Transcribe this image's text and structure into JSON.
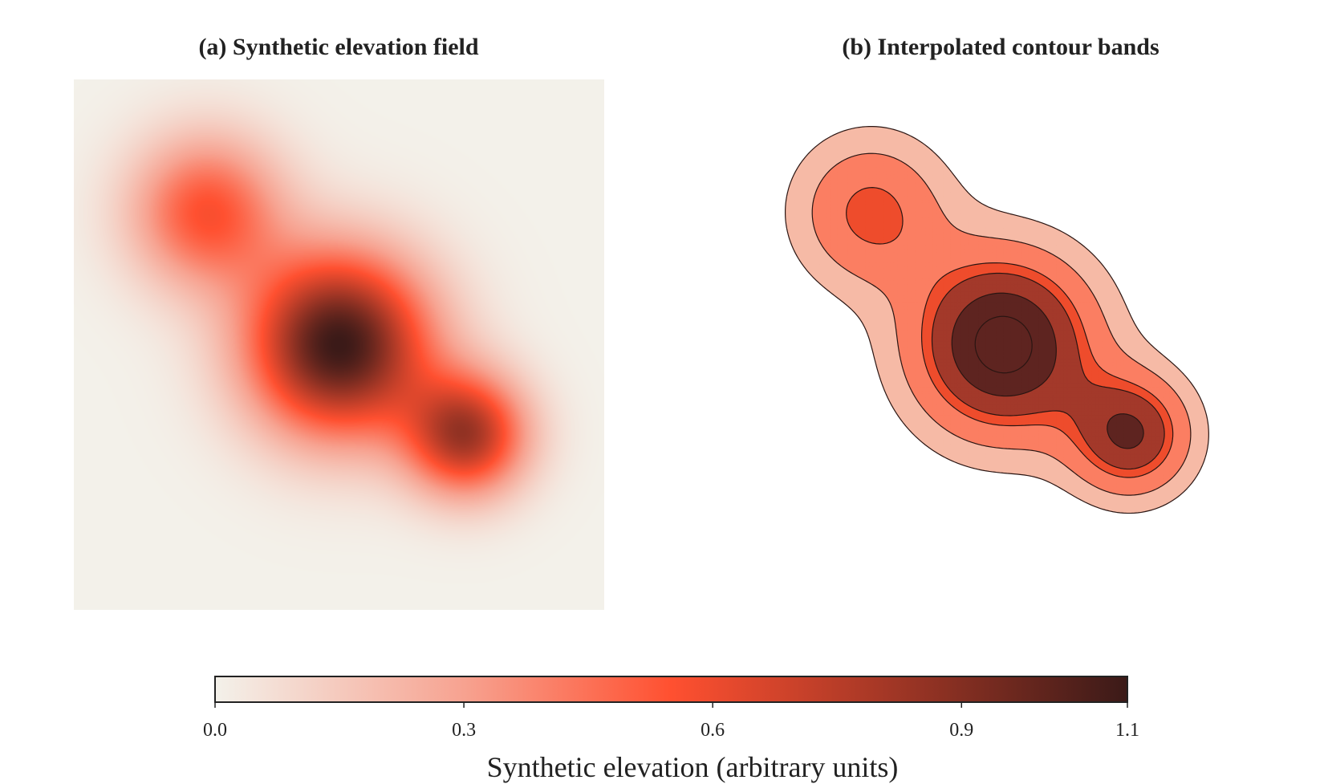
{
  "chart_data": [
    {
      "type": "heatmap",
      "title": "(a) Synthetic elevation field",
      "xlim": [
        0,
        1
      ],
      "ylim": [
        0,
        1
      ],
      "colormap": {
        "stops": [
          {
            "v": 0.0,
            "color": "#f3f1ea"
          },
          {
            "v": 0.3,
            "color": "#f7a290"
          },
          {
            "v": 0.55,
            "color": "#ff5030"
          },
          {
            "v": 0.8,
            "color": "#a73826"
          },
          {
            "v": 1.1,
            "color": "#3b1a18"
          }
        ]
      },
      "gaussian_peaks": [
        {
          "x": 0.25,
          "y": 0.75,
          "amplitude": 0.55,
          "sigma": 0.1
        },
        {
          "x": 0.5,
          "y": 0.5,
          "amplitude": 1.1,
          "sigma": 0.12
        },
        {
          "x": 0.74,
          "y": 0.33,
          "amplitude": 0.8,
          "sigma": 0.08
        }
      ],
      "grid": false,
      "axes_visible": false
    },
    {
      "type": "contour",
      "title": "(b) Interpolated contour bands",
      "levels": [
        0.15,
        0.3,
        0.5,
        0.6,
        0.8,
        1.0
      ],
      "band_colors": [
        "#f6baa6",
        "#fb7e62",
        "#ee4c2c",
        "#a3392a",
        "#5e2420"
      ],
      "line_color": "#2a1512",
      "grid": false,
      "axes_visible": false
    }
  ],
  "colorbar": {
    "label": "Synthetic elevation (arbitrary units)",
    "min": 0.0,
    "max": 1.1,
    "ticks": [
      {
        "value": 0.0,
        "label": "0.0"
      },
      {
        "value": 0.3,
        "label": "0.3"
      },
      {
        "value": 0.6,
        "label": "0.6"
      },
      {
        "value": 0.9,
        "label": "0.9"
      },
      {
        "value": 1.1,
        "label": "1.1"
      }
    ],
    "orientation": "horizontal"
  }
}
